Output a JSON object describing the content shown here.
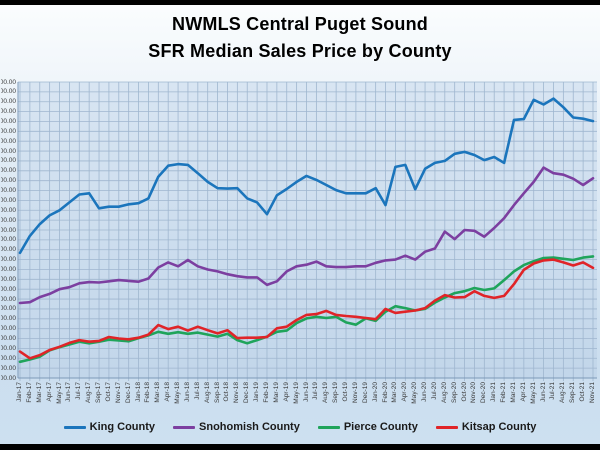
{
  "title": {
    "line1": "NWMLS Central Puget Sound",
    "line2": "SFR Median Sales Price by County"
  },
  "colors": {
    "frame_border": "#000000",
    "grid": "#9fb6cf",
    "axis": "#7d99b8",
    "axis_text": "#3a3a3a",
    "plot_bg_top": "#d8e5f2",
    "plot_bg_bottom": "#c2d6ea"
  },
  "chart_data": {
    "type": "line",
    "title": "NWMLS Central Puget Sound SFR Median Sales Price by County",
    "xlabel": "",
    "ylabel": "",
    "grid": true,
    "legend_position": "bottom",
    "x_tick_rotation": -90,
    "y_tick_format": "$#,##0.00",
    "y_tick_labels_clipped_to": "0.00",
    "ylim": [
      200000,
      950000
    ],
    "ytick_step": 25000,
    "x": [
      "Jan-17",
      "Feb-17",
      "Mar-17",
      "Apr-17",
      "May-17",
      "Jun-17",
      "Jul-17",
      "Aug-17",
      "Sep-17",
      "Oct-17",
      "Nov-17",
      "Dec-17",
      "Jan-18",
      "Feb-18",
      "Mar-18",
      "Apr-18",
      "May-18",
      "Jun-18",
      "Jul-18",
      "Aug-18",
      "Sep-18",
      "Oct-18",
      "Nov-18",
      "Dec-18",
      "Jan-19",
      "Feb-19",
      "Mar-19",
      "Apr-19",
      "May-19",
      "Jun-19",
      "Jul-19",
      "Aug-19",
      "Sep-19",
      "Oct-19",
      "Nov-19",
      "Dec-19",
      "Jan-20",
      "Feb-20",
      "Mar-20",
      "Apr-20",
      "May-20",
      "Jun-20",
      "Jul-20",
      "Aug-20",
      "Sep-20",
      "Oct-20",
      "Nov-20",
      "Dec-20",
      "Jan-21",
      "Feb-21",
      "Mar-21",
      "Apr-21",
      "May-21",
      "Jun-21",
      "Jul-21",
      "Aug-21",
      "Sep-21",
      "Oct-21",
      "Nov-21"
    ],
    "series": [
      {
        "name": "King County",
        "color": "#1b75bc",
        "values": [
          517000,
          560000,
          590000,
          612000,
          625000,
          645000,
          665000,
          668000,
          630000,
          634000,
          634000,
          640000,
          643000,
          655000,
          710000,
          738000,
          742000,
          740000,
          719000,
          697000,
          681000,
          680000,
          681000,
          655000,
          645000,
          615000,
          663000,
          679000,
          697000,
          712000,
          702000,
          689000,
          676000,
          668000,
          668000,
          668000,
          681000,
          638000,
          735000,
          740000,
          678000,
          730000,
          745000,
          750000,
          768000,
          773000,
          765000,
          752000,
          760000,
          745000,
          854000,
          856000,
          905000,
          893000,
          908000,
          886000,
          860000,
          857000,
          851000
        ]
      },
      {
        "name": "Snohomish County",
        "color": "#7c3fa0",
        "values": [
          390000,
          392000,
          405000,
          413000,
          425000,
          430000,
          440000,
          443000,
          442000,
          445000,
          448000,
          446000,
          444000,
          452000,
          480000,
          493000,
          483000,
          499000,
          483000,
          475000,
          470000,
          463000,
          458000,
          455000,
          455000,
          436000,
          445000,
          470000,
          483000,
          487000,
          495000,
          483000,
          481000,
          481000,
          483000,
          483000,
          492000,
          498000,
          500000,
          510000,
          500000,
          520000,
          528000,
          571000,
          552000,
          575000,
          573000,
          558000,
          580000,
          605000,
          638000,
          668000,
          697000,
          733000,
          719000,
          715000,
          705000,
          689000,
          706000
        ]
      },
      {
        "name": "Pierce County",
        "color": "#1fa45b",
        "values": [
          241000,
          247000,
          254000,
          270000,
          278000,
          285000,
          292000,
          288000,
          292000,
          297000,
          295000,
          293000,
          301000,
          308000,
          317000,
          312000,
          316000,
          312000,
          315000,
          310000,
          305000,
          312000,
          296000,
          288000,
          296000,
          305000,
          317000,
          320000,
          339000,
          351000,
          355000,
          352000,
          355000,
          341000,
          335000,
          351000,
          345000,
          368000,
          382000,
          377000,
          371000,
          375000,
          391000,
          404000,
          415000,
          420000,
          428000,
          423000,
          427000,
          448000,
          470000,
          486000,
          496000,
          504000,
          505000,
          502000,
          499000,
          505000,
          508000
        ]
      },
      {
        "name": "Kitsap County",
        "color": "#e02428",
        "values": [
          267000,
          250000,
          258000,
          271000,
          279000,
          289000,
          296000,
          292000,
          294000,
          304000,
          300000,
          298000,
          302000,
          310000,
          334000,
          324000,
          330000,
          320000,
          330000,
          321000,
          313000,
          321000,
          301000,
          302000,
          302000,
          304000,
          326000,
          330000,
          347000,
          360000,
          362000,
          370000,
          360000,
          357000,
          355000,
          352000,
          349000,
          375000,
          365000,
          368000,
          371000,
          377000,
          396000,
          410000,
          404000,
          405000,
          420000,
          408000,
          403000,
          408000,
          438000,
          474000,
          490000,
          498000,
          500000,
          493000,
          485000,
          493000,
          479000
        ]
      }
    ]
  }
}
